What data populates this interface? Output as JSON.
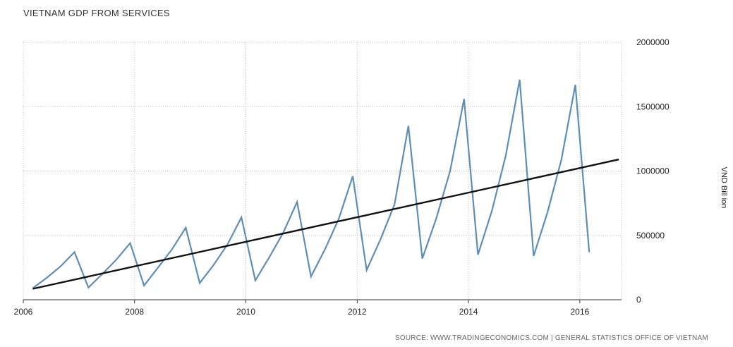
{
  "chart_data": {
    "type": "line",
    "title": "VIETNAM GDP FROM SERVICES",
    "ylabel": "VND Bill ion",
    "xlabel": "",
    "source": "SOURCE: WWW.TRADINGECONOMICS.COM | GENERAL STATISTICS OFFICE OF VIETNAM",
    "xlim": [
      2006,
      2016.75
    ],
    "ylim": [
      0,
      2000000
    ],
    "x_ticks": [
      2006,
      2008,
      2010,
      2012,
      2014,
      2016
    ],
    "y_ticks": [
      0,
      500000,
      1000000,
      1500000,
      2000000
    ],
    "x_tick_labels": [
      "2006",
      "2008",
      "2010",
      "2012",
      "2014",
      "2016"
    ],
    "y_tick_labels": [
      "0",
      "500000",
      "1000000",
      "1500000",
      "2000000"
    ],
    "grid": true,
    "y_axis_position": "right",
    "series": [
      {
        "color": "#5b8fb8",
        "points": [
          [
            2006.17,
            90000
          ],
          [
            2006.42,
            170000
          ],
          [
            2006.67,
            260000
          ],
          [
            2006.92,
            370000
          ],
          [
            2007.17,
            95000
          ],
          [
            2007.42,
            200000
          ],
          [
            2007.67,
            310000
          ],
          [
            2007.92,
            440000
          ],
          [
            2008.17,
            110000
          ],
          [
            2008.42,
            250000
          ],
          [
            2008.67,
            390000
          ],
          [
            2008.92,
            560000
          ],
          [
            2009.17,
            130000
          ],
          [
            2009.42,
            270000
          ],
          [
            2009.67,
            430000
          ],
          [
            2009.92,
            640000
          ],
          [
            2010.17,
            150000
          ],
          [
            2010.42,
            330000
          ],
          [
            2010.67,
            520000
          ],
          [
            2010.92,
            760000
          ],
          [
            2011.17,
            180000
          ],
          [
            2011.42,
            390000
          ],
          [
            2011.67,
            630000
          ],
          [
            2011.92,
            960000
          ],
          [
            2012.17,
            230000
          ],
          [
            2012.42,
            470000
          ],
          [
            2012.67,
            740000
          ],
          [
            2012.92,
            1350000
          ],
          [
            2013.17,
            320000
          ],
          [
            2013.42,
            630000
          ],
          [
            2013.67,
            1000000
          ],
          [
            2013.92,
            1560000
          ],
          [
            2014.17,
            350000
          ],
          [
            2014.42,
            690000
          ],
          [
            2014.67,
            1120000
          ],
          [
            2014.92,
            1710000
          ],
          [
            2015.17,
            340000
          ],
          [
            2015.42,
            680000
          ],
          [
            2015.67,
            1090000
          ],
          [
            2015.92,
            1670000
          ],
          [
            2016.17,
            370000
          ]
        ]
      },
      {
        "color": "#111111",
        "points": [
          [
            2006.17,
            85000
          ],
          [
            2016.7,
            1090000
          ]
        ]
      }
    ]
  }
}
